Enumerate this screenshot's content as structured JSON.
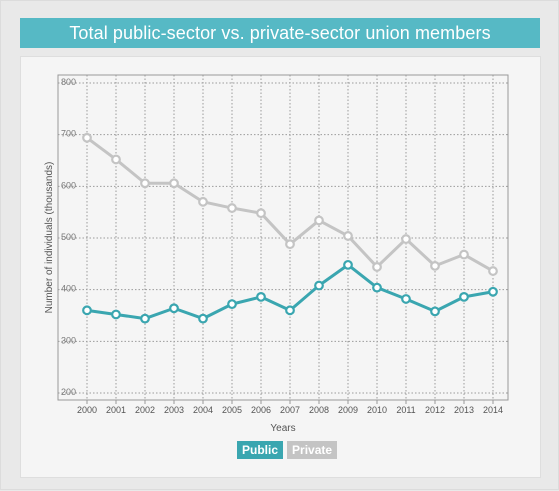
{
  "title": "Total public-sector vs. private-sector union members",
  "colors": {
    "public": "#3aa6b0",
    "private": "#c4c4c4",
    "title_bg": "#56b9c5"
  },
  "legend": {
    "public": "Public",
    "private": "Private"
  },
  "chart_data": {
    "type": "line",
    "title": "Total public-sector vs. private-sector union members",
    "xlabel": "Years",
    "ylabel": "Number of individuals (thousands)",
    "ylim": [
      200,
      800
    ],
    "yticks": [
      200,
      300,
      400,
      500,
      600,
      700,
      800
    ],
    "x": [
      "2000",
      "2001",
      "2002",
      "2003",
      "2004",
      "2005",
      "2006",
      "2007",
      "2008",
      "2009",
      "2010",
      "2011",
      "2012",
      "2013",
      "2014"
    ],
    "grid": true,
    "legend_position": "bottom-center",
    "series": [
      {
        "name": "Public",
        "values": [
          360,
          352,
          344,
          364,
          344,
          372,
          386,
          360,
          408,
          448,
          404,
          382,
          358,
          386,
          396
        ]
      },
      {
        "name": "Private",
        "values": [
          694,
          652,
          606,
          606,
          570,
          558,
          548,
          488,
          534,
          504,
          444,
          498,
          446,
          468,
          436
        ]
      }
    ]
  }
}
